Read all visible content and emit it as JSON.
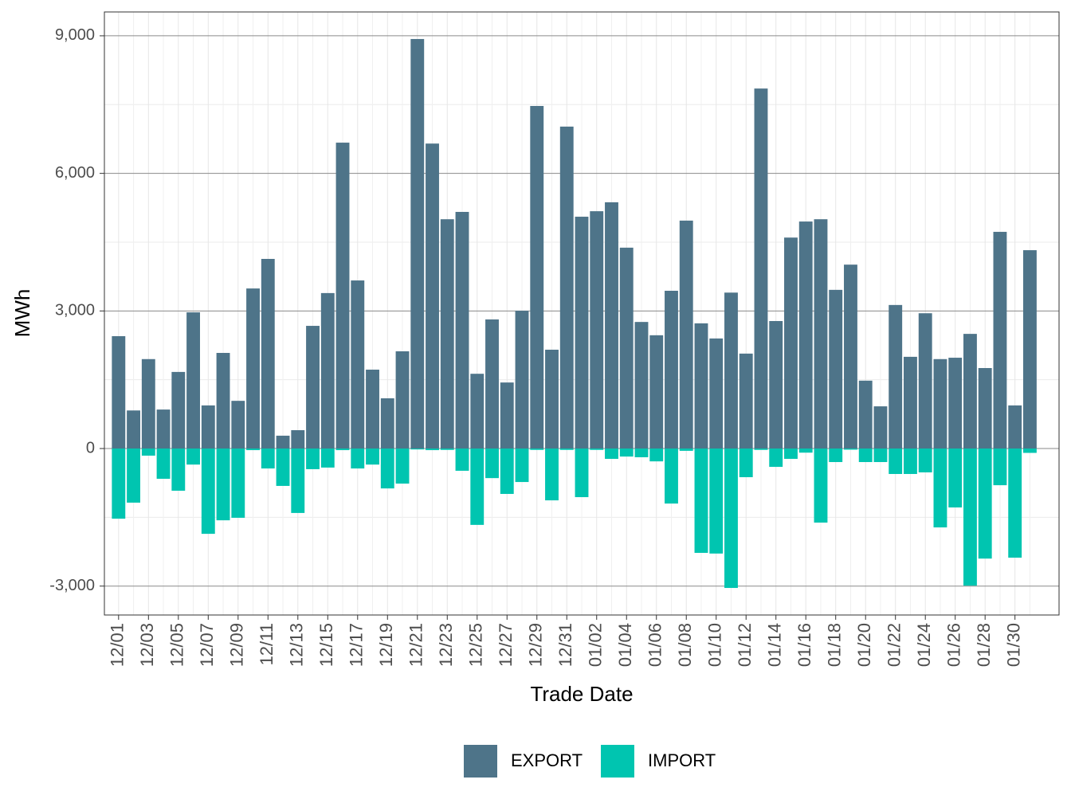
{
  "chart_data": {
    "type": "bar",
    "stacked": true,
    "x_label": "Trade Date",
    "y_label": "MWh",
    "categories": [
      "12/01",
      null,
      "12/03",
      null,
      "12/05",
      null,
      "12/07",
      null,
      "12/09",
      null,
      "12/11",
      null,
      "12/13",
      null,
      "12/15",
      null,
      "12/17",
      null,
      "12/19",
      null,
      "12/21",
      null,
      "12/23",
      null,
      "12/25",
      null,
      "12/27",
      null,
      "12/29",
      null,
      "12/31",
      null,
      "01/02",
      null,
      "01/04",
      null,
      "01/06",
      null,
      "01/08",
      null,
      "01/10",
      null,
      "01/12",
      null,
      "01/14",
      null,
      "01/16",
      null,
      "01/18",
      null,
      "01/20",
      null,
      "01/22",
      null,
      "01/24",
      null,
      "01/26",
      null,
      "01/28",
      null,
      "01/30",
      null
    ],
    "series": [
      {
        "name": "EXPORT",
        "color": "#4e7489",
        "values": [
          2450,
          830,
          1950,
          850,
          1670,
          2970,
          940,
          2085,
          1040,
          3490,
          4135,
          280,
          400,
          2675,
          3390,
          6670,
          3665,
          1720,
          1095,
          2120,
          8930,
          6650,
          5000,
          5160,
          1630,
          2815,
          1440,
          3005,
          7470,
          2155,
          7020,
          5055,
          5175,
          5370,
          4380,
          2760,
          2470,
          3440,
          4970,
          2730,
          2400,
          3400,
          2070,
          7850,
          2780,
          4600,
          4950,
          5000,
          3460,
          4010,
          1480,
          920,
          3130,
          2000,
          2950,
          1950,
          1980,
          2500,
          1755,
          4725,
          940,
          4325
        ]
      },
      {
        "name": "IMPORT",
        "color": "#00c5b0",
        "values": [
          -1530,
          -1180,
          -155,
          -660,
          -920,
          -350,
          -1860,
          -1565,
          -1510,
          -35,
          -435,
          -815,
          -1405,
          -450,
          -415,
          -35,
          -435,
          -350,
          -870,
          -765,
          -20,
          -35,
          -30,
          -485,
          -1665,
          -645,
          -990,
          -730,
          -30,
          -1130,
          -30,
          -1060,
          -30,
          -225,
          -175,
          -190,
          -280,
          -1200,
          -50,
          -2275,
          -2290,
          -3040,
          -625,
          -30,
          -400,
          -225,
          -90,
          -1615,
          -295,
          -25,
          -295,
          -295,
          -555,
          -555,
          -520,
          -1720,
          -1285,
          -2990,
          -2400,
          -800,
          -2380,
          -95
        ]
      }
    ],
    "ylim": [
      -3630,
      9520
    ],
    "yticks": [
      {
        "value": -3000,
        "label": "-3,000"
      },
      0,
      {
        "value": 3000,
        "label": "3,000"
      },
      {
        "value": 6000,
        "label": "6,000"
      },
      {
        "value": 9000,
        "label": "9,000"
      }
    ],
    "grid": true,
    "legend": "bottom"
  }
}
